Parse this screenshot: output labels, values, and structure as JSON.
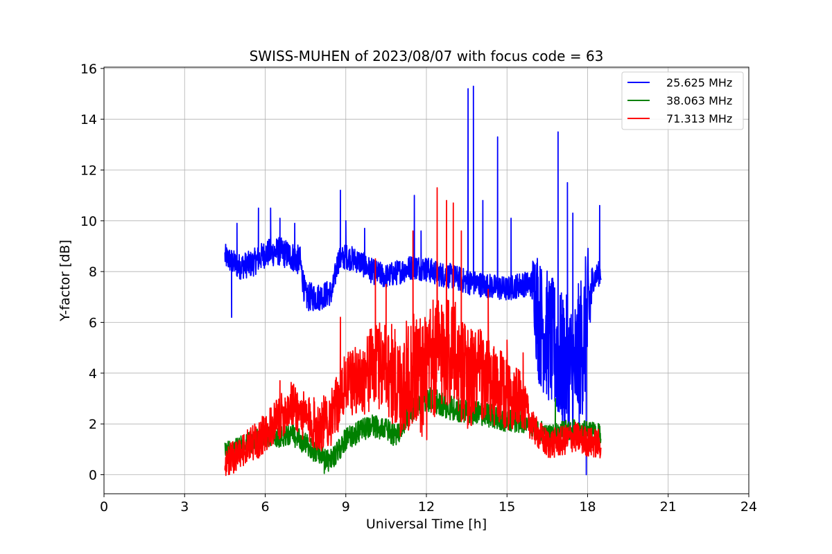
{
  "chart_data": {
    "type": "line",
    "title": "SWISS-MUHEN of 2023/08/07 with focus code = 63",
    "xlabel": "Universal Time [h]",
    "ylabel": "Y-factor [dB]",
    "xlim": [
      0,
      24
    ],
    "ylim": [
      -0.75,
      16.05
    ],
    "xticks": [
      0,
      3,
      6,
      9,
      12,
      15,
      18,
      21,
      24
    ],
    "yticks": [
      0,
      2,
      4,
      6,
      8,
      10,
      12,
      14,
      16
    ],
    "xtick_labels": [
      "0",
      "3",
      "6",
      "9",
      "12",
      "15",
      "18",
      "21",
      "24"
    ],
    "ytick_labels": [
      "0",
      "2",
      "4",
      "6",
      "8",
      "10",
      "12",
      "14",
      "16"
    ],
    "grid": true,
    "legend_position": "top-right",
    "series": [
      {
        "name": "25.625 MHz",
        "color": "#0000ff",
        "x_range": [
          4.5,
          18.5
        ],
        "base": [
          [
            4.5,
            8.6
          ],
          [
            5.0,
            8.2
          ],
          [
            5.5,
            8.3
          ],
          [
            6.0,
            8.7
          ],
          [
            6.5,
            8.8
          ],
          [
            7.0,
            8.6
          ],
          [
            7.3,
            8.4
          ],
          [
            7.5,
            7.0
          ],
          [
            8.0,
            7.0
          ],
          [
            8.5,
            7.2
          ],
          [
            8.7,
            8.4
          ],
          [
            9.0,
            8.6
          ],
          [
            9.5,
            8.4
          ],
          [
            10.0,
            8.0
          ],
          [
            10.5,
            7.8
          ],
          [
            11.0,
            8.0
          ],
          [
            11.5,
            8.2
          ],
          [
            12.0,
            8.1
          ],
          [
            12.5,
            7.9
          ],
          [
            13.0,
            7.8
          ],
          [
            13.5,
            7.6
          ],
          [
            14.0,
            7.5
          ],
          [
            14.5,
            7.4
          ],
          [
            15.0,
            7.3
          ],
          [
            15.5,
            7.5
          ],
          [
            16.0,
            7.5
          ],
          [
            16.2,
            6.0
          ],
          [
            16.5,
            5.5
          ],
          [
            17.0,
            4.5
          ],
          [
            17.5,
            4.0
          ],
          [
            18.0,
            6.0
          ],
          [
            18.2,
            7.7
          ],
          [
            18.5,
            8.0
          ]
        ],
        "noise": [
          [
            4.5,
            0.5
          ],
          [
            7.3,
            0.6
          ],
          [
            8.7,
            0.5
          ],
          [
            15.9,
            0.5
          ],
          [
            16.1,
            2.5
          ],
          [
            18.0,
            3.0
          ],
          [
            18.2,
            0.5
          ]
        ],
        "spikes": [
          [
            4.75,
            6.2
          ],
          [
            4.95,
            9.9
          ],
          [
            5.75,
            10.5
          ],
          [
            6.2,
            10.5
          ],
          [
            6.55,
            10.1
          ],
          [
            7.1,
            9.9
          ],
          [
            8.8,
            11.2
          ],
          [
            9.0,
            10.0
          ],
          [
            9.7,
            9.7
          ],
          [
            11.55,
            11.0
          ],
          [
            11.8,
            9.6
          ],
          [
            13.55,
            15.2
          ],
          [
            13.75,
            15.3
          ],
          [
            14.1,
            10.8
          ],
          [
            14.65,
            13.3
          ],
          [
            15.15,
            10.1
          ],
          [
            16.9,
            13.5
          ],
          [
            17.25,
            11.5
          ],
          [
            17.45,
            10.3
          ],
          [
            17.95,
            0.0
          ],
          [
            18.45,
            10.6
          ]
        ]
      },
      {
        "name": "38.063 MHz",
        "color": "#008000",
        "x_range": [
          4.5,
          18.5
        ],
        "base": [
          [
            4.5,
            0.9
          ],
          [
            5.0,
            1.1
          ],
          [
            5.5,
            1.3
          ],
          [
            6.0,
            1.5
          ],
          [
            6.5,
            1.5
          ],
          [
            7.0,
            1.6
          ],
          [
            7.5,
            1.2
          ],
          [
            8.0,
            0.8
          ],
          [
            8.3,
            0.5
          ],
          [
            8.7,
            0.9
          ],
          [
            9.0,
            1.4
          ],
          [
            9.5,
            1.7
          ],
          [
            10.0,
            1.9
          ],
          [
            10.5,
            1.8
          ],
          [
            10.8,
            1.5
          ],
          [
            11.0,
            1.8
          ],
          [
            11.5,
            2.6
          ],
          [
            12.0,
            3.0
          ],
          [
            12.5,
            2.8
          ],
          [
            13.0,
            2.6
          ],
          [
            13.5,
            2.5
          ],
          [
            14.0,
            2.4
          ],
          [
            14.5,
            2.3
          ],
          [
            15.0,
            2.1
          ],
          [
            15.5,
            2.1
          ],
          [
            16.0,
            1.9
          ],
          [
            16.5,
            1.5
          ],
          [
            17.0,
            1.7
          ],
          [
            17.5,
            1.8
          ],
          [
            18.0,
            1.7
          ],
          [
            18.5,
            1.6
          ]
        ],
        "noise": [
          [
            4.5,
            0.4
          ],
          [
            12.0,
            0.5
          ],
          [
            18.5,
            0.4
          ]
        ],
        "spikes": [
          [
            8.2,
            0.05
          ],
          [
            11.55,
            3.8
          ],
          [
            16.8,
            3.0
          ]
        ]
      },
      {
        "name": "71.313 MHz",
        "color": "#ff0000",
        "x_range": [
          4.5,
          18.5
        ],
        "base": [
          [
            4.5,
            0.5
          ],
          [
            5.0,
            0.8
          ],
          [
            5.5,
            1.2
          ],
          [
            6.0,
            1.6
          ],
          [
            6.5,
            2.2
          ],
          [
            7.0,
            2.8
          ],
          [
            7.5,
            2.2
          ],
          [
            8.0,
            1.9
          ],
          [
            8.5,
            2.3
          ],
          [
            9.0,
            3.6
          ],
          [
            9.5,
            3.7
          ],
          [
            10.0,
            4.2
          ],
          [
            10.5,
            4.4
          ],
          [
            11.0,
            3.4
          ],
          [
            11.5,
            4.2
          ],
          [
            12.0,
            3.8
          ],
          [
            12.5,
            5.0
          ],
          [
            13.0,
            4.8
          ],
          [
            13.5,
            3.8
          ],
          [
            14.0,
            4.0
          ],
          [
            14.5,
            3.4
          ],
          [
            15.0,
            3.2
          ],
          [
            15.5,
            3.0
          ],
          [
            16.0,
            1.8
          ],
          [
            16.5,
            1.2
          ],
          [
            17.0,
            1.3
          ],
          [
            17.5,
            1.5
          ],
          [
            18.0,
            1.3
          ],
          [
            18.5,
            1.2
          ]
        ],
        "noise": [
          [
            4.5,
            0.6
          ],
          [
            9.0,
            1.2
          ],
          [
            12.0,
            2.6
          ],
          [
            15.0,
            1.5
          ],
          [
            16.0,
            0.6
          ],
          [
            18.5,
            0.6
          ]
        ],
        "spikes": [
          [
            6.55,
            3.7
          ],
          [
            8.8,
            6.2
          ],
          [
            10.1,
            8.5
          ],
          [
            10.5,
            7.5
          ],
          [
            11.5,
            9.6
          ],
          [
            12.4,
            11.3
          ],
          [
            12.75,
            10.8
          ],
          [
            13.0,
            10.7
          ],
          [
            13.3,
            9.6
          ],
          [
            14.3,
            7.3
          ],
          [
            15.0,
            5.3
          ],
          [
            15.6,
            4.8
          ],
          [
            16.05,
            2.2
          ]
        ]
      }
    ]
  }
}
